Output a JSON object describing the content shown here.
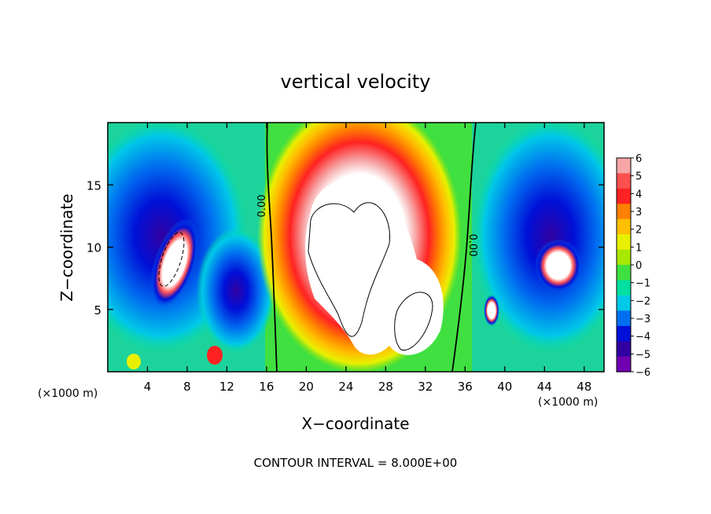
{
  "chart_data": {
    "type": "heatmap",
    "title": "vertical velocity",
    "xlabel": "X−coordinate",
    "ylabel": "Z−coordinate",
    "x_unit_left": "(×1000 m)",
    "x_unit_right": "(×1000 m)",
    "footer": "CONTOUR INTERVAL = 8.000E+00",
    "xlim": [
      0,
      50
    ],
    "ylim": [
      0,
      20
    ],
    "x_ticks": [
      "4",
      "8",
      "12",
      "16",
      "20",
      "24",
      "28",
      "32",
      "36",
      "40",
      "44",
      "48"
    ],
    "x_tick_values": [
      4,
      8,
      12,
      16,
      20,
      24,
      28,
      32,
      36,
      40,
      44,
      48
    ],
    "y_ticks": [
      "5",
      "10",
      "15"
    ],
    "y_tick_values": [
      5,
      10,
      15
    ],
    "contour_labels": [
      "0.00",
      "0.00"
    ],
    "colorbar": {
      "min": -6,
      "max": 6,
      "tick_labels": [
        "6",
        "5",
        "4",
        "3",
        "2",
        "1",
        "0",
        "−1",
        "−2",
        "−3",
        "−4",
        "−5",
        "−6"
      ],
      "colors": [
        "#f6a6a6",
        "#ff5050",
        "#ff2222",
        "#ff8000",
        "#ffc000",
        "#e8f000",
        "#a8e800",
        "#40e040",
        "#00e0a0",
        "#00c8e8",
        "#0070f0",
        "#0010d8",
        "#3000a0",
        "#7000b0"
      ]
    },
    "features": [
      {
        "type": "updraft",
        "x": 26,
        "z": 10,
        "w": 12
      },
      {
        "type": "updraft",
        "x": 7.5,
        "z": 8.5,
        "w": 7
      },
      {
        "type": "updraft",
        "x": 45.5,
        "z": 9,
        "w": 7
      },
      {
        "type": "downdraft",
        "x": 4,
        "z": 11,
        "w": -5
      },
      {
        "type": "downdraft",
        "x": 46,
        "z": 11,
        "w": -5
      }
    ]
  }
}
